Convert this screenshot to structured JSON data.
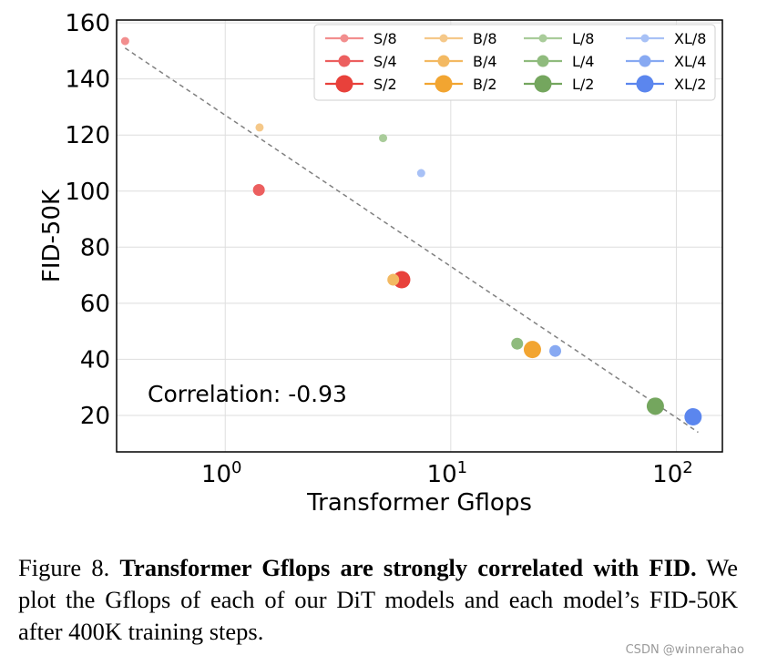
{
  "chart_data": {
    "type": "scatter",
    "xscale": "log",
    "xlabel": "Transformer Gflops",
    "ylabel": "FID-50K",
    "xlim": [
      0.33,
      160
    ],
    "ylim": [
      7,
      161
    ],
    "yticks": [
      20,
      40,
      60,
      80,
      100,
      120,
      140,
      160
    ],
    "xticks": [
      {
        "value": 1,
        "base": "10",
        "exp": "0"
      },
      {
        "value": 10,
        "base": "10",
        "exp": "1"
      },
      {
        "value": 100,
        "base": "10",
        "exp": "2"
      }
    ],
    "grid": true,
    "legend_position": "top-right",
    "annotation": "Correlation: -0.93",
    "trendline": {
      "style": "dashed",
      "color": "#808080",
      "points": [
        [
          0.36,
          151
        ],
        [
          125,
          14
        ]
      ]
    },
    "series": [
      {
        "name": "S/8",
        "color": "#f28e8e",
        "gflops": 0.36,
        "fid": 153.5,
        "size": "small"
      },
      {
        "name": "S/4",
        "color": "#ec5f5f",
        "gflops": 1.41,
        "fid": 100.4,
        "size": "medium"
      },
      {
        "name": "S/2",
        "color": "#e8413b",
        "gflops": 6.06,
        "fid": 68.4,
        "size": "large"
      },
      {
        "name": "B/8",
        "color": "#f5c889",
        "gflops": 1.42,
        "fid": 122.7,
        "size": "small"
      },
      {
        "name": "B/4",
        "color": "#f3b962",
        "gflops": 5.56,
        "fid": 68.4,
        "size": "medium"
      },
      {
        "name": "B/2",
        "color": "#f2a531",
        "gflops": 23.01,
        "fid": 43.5,
        "size": "large"
      },
      {
        "name": "L/8",
        "color": "#a9cc9a",
        "gflops": 5.01,
        "fid": 118.9,
        "size": "small"
      },
      {
        "name": "L/4",
        "color": "#8fbb7d",
        "gflops": 19.7,
        "fid": 45.6,
        "size": "medium"
      },
      {
        "name": "L/2",
        "color": "#74a65e",
        "gflops": 80.71,
        "fid": 23.3,
        "size": "large"
      },
      {
        "name": "XL/8",
        "color": "#a8c1f6",
        "gflops": 7.39,
        "fid": 106.4,
        "size": "small"
      },
      {
        "name": "XL/4",
        "color": "#87a9f2",
        "gflops": 29.05,
        "fid": 43.0,
        "size": "medium"
      },
      {
        "name": "XL/2",
        "color": "#5b86ee",
        "gflops": 118.64,
        "fid": 19.5,
        "size": "large"
      }
    ]
  },
  "caption": {
    "label": "Figure 8.",
    "bold": "Transformer Gflops are strongly correlated with FID.",
    "text": "We plot the Gflops of each of our DiT models and each model’s FID-50K after 400K training steps."
  },
  "watermark": "CSDN @winnerahao"
}
